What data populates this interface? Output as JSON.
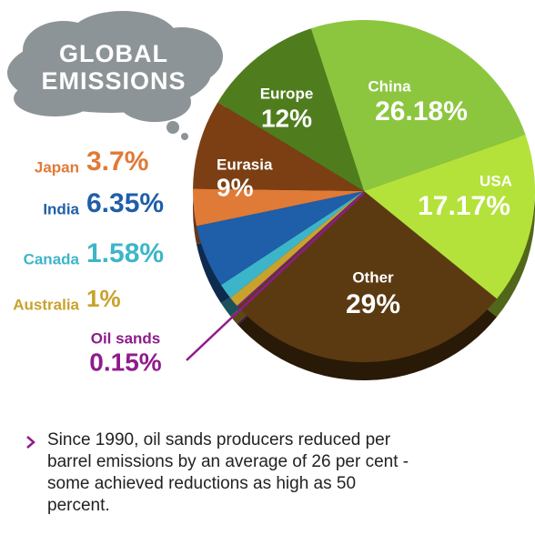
{
  "chart_data": {
    "type": "pie",
    "title": "GLOBAL EMISSIONS",
    "categories": [
      "China",
      "USA",
      "Other",
      "Oil sands",
      "Australia",
      "Canada",
      "India",
      "Japan",
      "Eurasia",
      "Europe"
    ],
    "values": [
      26.18,
      17.17,
      29,
      0.15,
      1,
      1.58,
      6.35,
      3.7,
      9,
      12
    ],
    "value_labels": [
      "26.18%",
      "17.17%",
      "29%",
      "0.15%",
      "1%",
      "1.58%",
      "6.35%",
      "3.7%",
      "9%",
      "12%"
    ],
    "colors": [
      "#8cc63f",
      "#b4e23a",
      "#5b3a12",
      "#8e1c8c",
      "#c9a22c",
      "#3db5c9",
      "#1f5ea8",
      "#e07a37",
      "#7b3f13",
      "#4f7d1d"
    ]
  },
  "note": "Since 1990, oil sands producers reduced per barrel emissions by an average of 26 per cent - some achieved reductions as high as 50 percent."
}
